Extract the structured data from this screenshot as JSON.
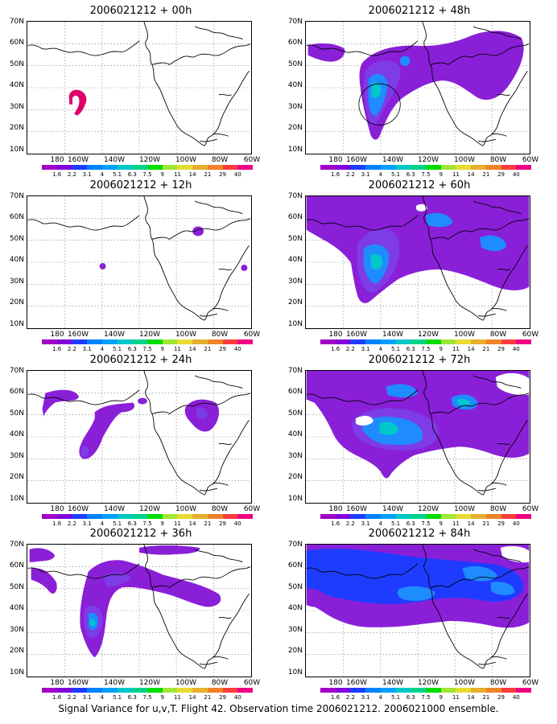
{
  "figure": {
    "caption": "Signal Variance for u,v,T. Flight 42. Observation time 2006021212. 2006021000 ensemble."
  },
  "axes": {
    "lat_labels": [
      "70N",
      "60N",
      "50N",
      "40N",
      "30N",
      "20N",
      "10N"
    ],
    "lon_labels": [
      "180",
      "160W",
      "140W",
      "120W",
      "100W",
      "80W",
      "60W"
    ]
  },
  "colorbar": {
    "labels": [
      "1.6",
      "2.2",
      "3.1",
      "4",
      "5.1",
      "6.3",
      "7.5",
      "9",
      "11",
      "14",
      "21",
      "29",
      "40"
    ],
    "colors": [
      "#a000c8",
      "#8200dc",
      "#1e3cff",
      "#0082ff",
      "#00a0ff",
      "#00c8c8",
      "#00d28c",
      "#00dc00",
      "#a0e632",
      "#e6dc32",
      "#e6af2d",
      "#f08228",
      "#fa3c3c",
      "#f00082"
    ]
  },
  "panels": [
    {
      "title": "2006021212 + 00h"
    },
    {
      "title": "2006021212 + 48h"
    },
    {
      "title": "2006021212 + 12h"
    },
    {
      "title": "2006021212 + 60h"
    },
    {
      "title": "2006021212 + 24h"
    },
    {
      "title": "2006021212 + 72h"
    },
    {
      "title": "2006021212 + 36h"
    },
    {
      "title": "2006021212 + 84h"
    }
  ]
}
